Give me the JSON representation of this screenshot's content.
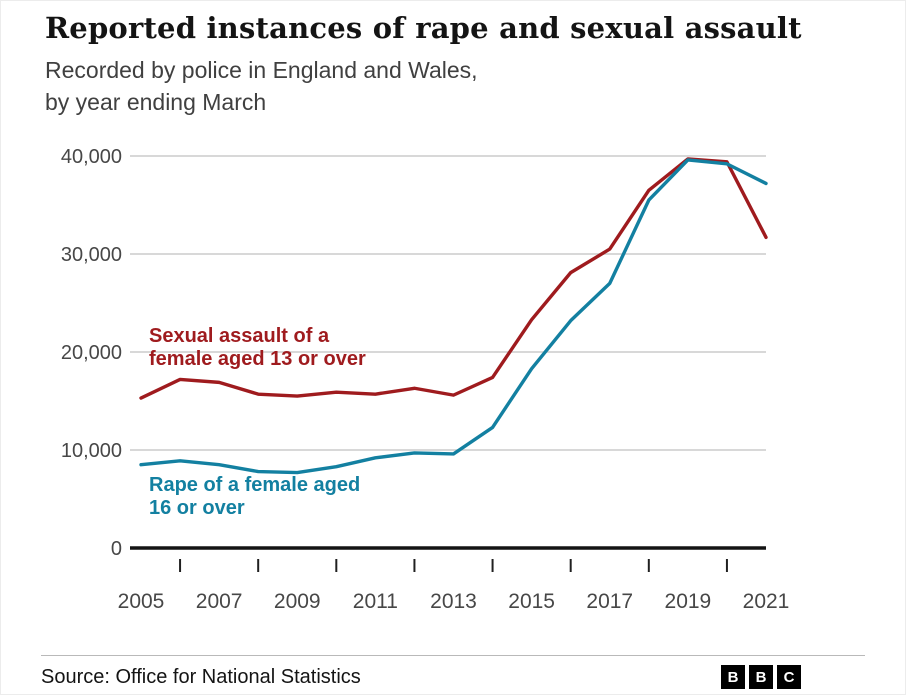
{
  "chart_data": {
    "type": "line",
    "title": "Reported instances of rape and sexual assault",
    "subtitle_lines": [
      "Recorded by police in England and Wales,",
      "by year ending March"
    ],
    "xlabel": "",
    "ylabel": "",
    "grid": "horizontal",
    "legend_position": "inline-labels",
    "x": [
      2005,
      2006,
      2007,
      2008,
      2009,
      2010,
      2011,
      2012,
      2013,
      2014,
      2015,
      2016,
      2017,
      2018,
      2019,
      2020,
      2021
    ],
    "ylim": [
      0,
      40000
    ],
    "yticks": [
      0,
      10000,
      20000,
      30000,
      40000
    ],
    "ytick_labels": [
      "0",
      "10,000",
      "20,000",
      "30,000",
      "40,000"
    ],
    "xtick_label_years": [
      2005,
      2007,
      2009,
      2011,
      2013,
      2015,
      2017,
      2019,
      2021
    ],
    "xtick_labels": [
      "2005",
      "2007",
      "2009",
      "2011",
      "2013",
      "2015",
      "2017",
      "2019",
      "2021"
    ],
    "xtick_minor_years": [
      2006,
      2008,
      2010,
      2012,
      2014,
      2016,
      2018,
      2020
    ],
    "colors": {
      "grid": "#cbcbcb",
      "axis": "#141414",
      "axis_text": "#474747"
    },
    "series": [
      {
        "id": "sexual_assault",
        "name": "Sexual assault of a female aged 13 or over",
        "color": "#9f1b1e",
        "label_lines": [
          "Sexual assault of a",
          "female aged 13 or over"
        ],
        "values": [
          15300,
          17200,
          16900,
          15700,
          15500,
          15900,
          15700,
          16300,
          15600,
          17400,
          23300,
          28100,
          30500,
          36500,
          39700,
          39400,
          31700
        ]
      },
      {
        "id": "rape",
        "name": "Rape of a female aged 16 or over",
        "color": "#1380a1",
        "label_lines": [
          "Rape of a female aged",
          "16 or over"
        ],
        "values": [
          8500,
          8900,
          8500,
          7800,
          7700,
          8300,
          9200,
          9700,
          9600,
          12300,
          18300,
          23200,
          27000,
          35500,
          39600,
          39200,
          37200
        ]
      }
    ]
  },
  "footer": {
    "source": "Source: Office for National Statistics",
    "logo_letters": [
      "B",
      "B",
      "C"
    ]
  }
}
